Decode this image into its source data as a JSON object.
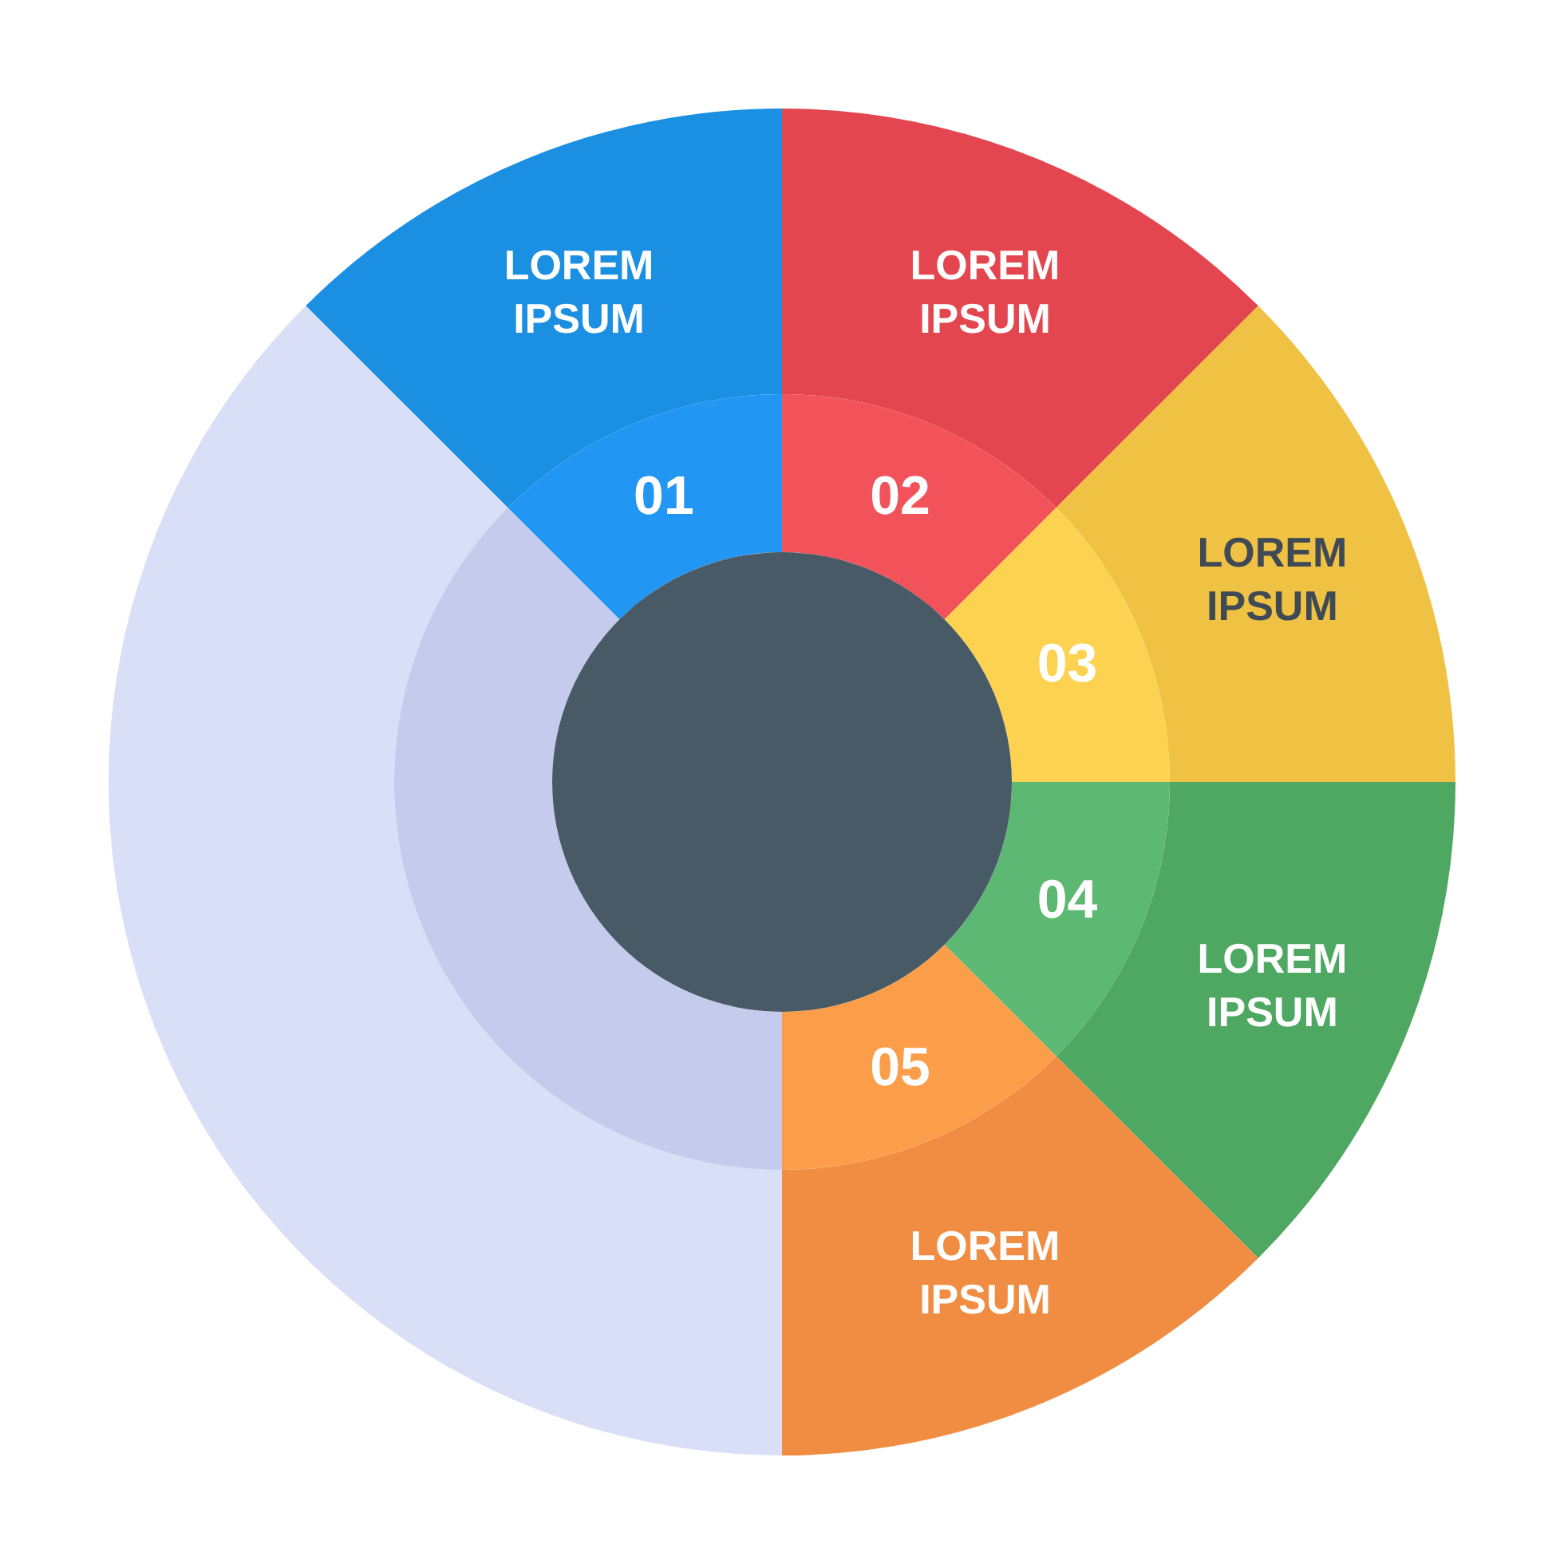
{
  "chart_data": {
    "type": "donut",
    "categories": [
      "01",
      "02",
      "03",
      "04",
      "05",
      null
    ],
    "series": [
      {
        "values": [
          12.5,
          12.5,
          12.5,
          12.5,
          12.5,
          37.5
        ],
        "colors": [
          "#1b8fe2",
          "#e4464f",
          "#f0c244",
          "#4fa862",
          "#f08d43",
          "#dadff8"
        ],
        "value_labels": [
          "LOREM IPSUM",
          "LOREM IPSUM",
          "LOREM IPSUM",
          "LOREM IPSUM",
          "LOREM IPSUM",
          null
        ]
      },
      {
        "values": [
          12.5,
          12.5,
          12.5,
          12.5,
          12.5,
          37.5
        ],
        "colors": [
          "#2196f3",
          "#f2535a",
          "#fdd250",
          "#5cb873",
          "#fc9d4a",
          "#c5cbec"
        ]
      }
    ]
  }
}
